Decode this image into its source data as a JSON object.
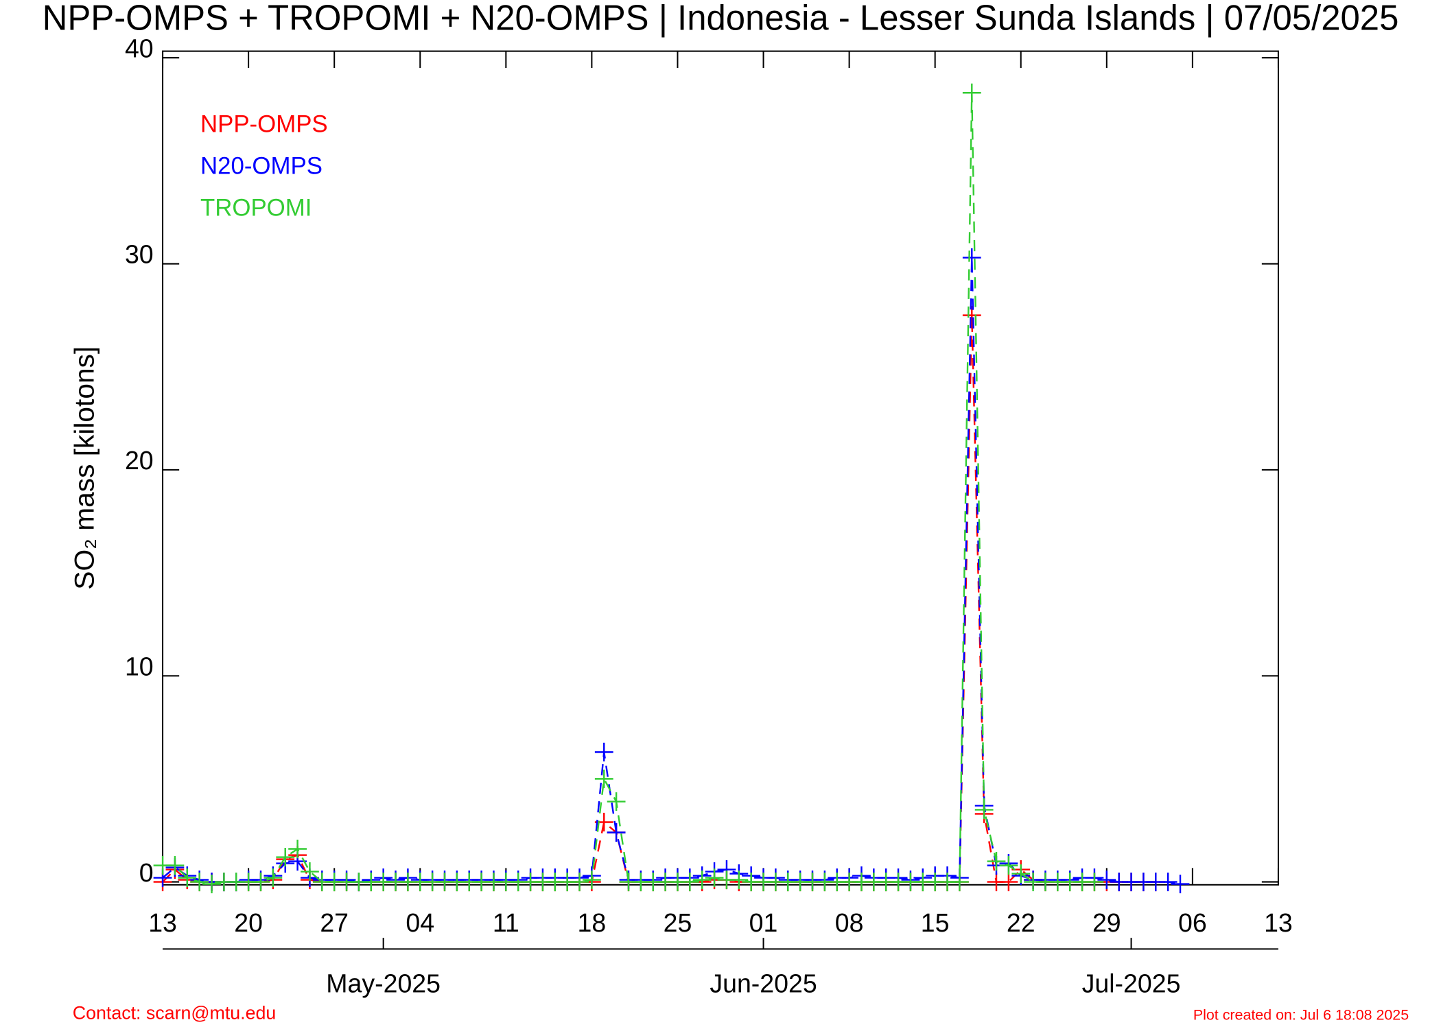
{
  "chart_data": {
    "type": "line",
    "title": "NPP-OMPS + TROPOMI + N20-OMPS | Indonesia - Lesser Sunda Islands | 07/05/2025",
    "y_label": "SO₂ mass [kilotons]",
    "contact": "Contact: scarn@mtu.edu",
    "created": "Plot created on: Jul  6 18:08 2025",
    "x": [
      "2025-04-13",
      "2025-04-14",
      "2025-04-15",
      "2025-04-16",
      "2025-04-17",
      "2025-04-18",
      "2025-04-19",
      "2025-04-20",
      "2025-04-21",
      "2025-04-22",
      "2025-04-23",
      "2025-04-24",
      "2025-04-25",
      "2025-04-26",
      "2025-04-27",
      "2025-04-28",
      "2025-04-29",
      "2025-04-30",
      "2025-05-01",
      "2025-05-02",
      "2025-05-03",
      "2025-05-04",
      "2025-05-05",
      "2025-05-06",
      "2025-05-07",
      "2025-05-08",
      "2025-05-09",
      "2025-05-10",
      "2025-05-11",
      "2025-05-12",
      "2025-05-13",
      "2025-05-14",
      "2025-05-15",
      "2025-05-16",
      "2025-05-17",
      "2025-05-18",
      "2025-05-19",
      "2025-05-20",
      "2025-05-21",
      "2025-05-22",
      "2025-05-23",
      "2025-05-24",
      "2025-05-25",
      "2025-05-26",
      "2025-05-27",
      "2025-05-28",
      "2025-05-29",
      "2025-05-30",
      "2025-05-31",
      "2025-06-01",
      "2025-06-02",
      "2025-06-03",
      "2025-06-04",
      "2025-06-05",
      "2025-06-06",
      "2025-06-07",
      "2025-06-08",
      "2025-06-09",
      "2025-06-10",
      "2025-06-11",
      "2025-06-12",
      "2025-06-13",
      "2025-06-14",
      "2025-06-15",
      "2025-06-16",
      "2025-06-17",
      "2025-06-18",
      "2025-06-19",
      "2025-06-20",
      "2025-06-21",
      "2025-06-22",
      "2025-06-23",
      "2025-06-24",
      "2025-06-25",
      "2025-06-26",
      "2025-06-27",
      "2025-06-28",
      "2025-06-29",
      "2025-06-30",
      "2025-07-01",
      "2025-07-02",
      "2025-07-03",
      "2025-07-04",
      "2025-07-05"
    ],
    "series": [
      {
        "name": "NPP-OMPS",
        "color": "#ff0000",
        "values": [
          0.0,
          0.6,
          0.1,
          0.0,
          0.0,
          0.0,
          0.0,
          0.0,
          0.0,
          0.1,
          1.1,
          1.3,
          0.1,
          0.0,
          0.0,
          0.0,
          0.0,
          0.0,
          0.0,
          0.0,
          0.0,
          0.0,
          0.0,
          0.0,
          0.0,
          0.0,
          0.0,
          0.0,
          0.0,
          0.0,
          0.0,
          0.0,
          0.0,
          0.0,
          0.0,
          0.0,
          2.9,
          2.4,
          0.0,
          0.0,
          0.0,
          0.0,
          0.0,
          0.0,
          0.0,
          0.1,
          0.1,
          0.0,
          0.0,
          0.0,
          0.0,
          0.0,
          0.0,
          0.0,
          0.0,
          0.0,
          0.0,
          0.0,
          0.0,
          0.0,
          0.0,
          0.0,
          0.0,
          0.0,
          0.0,
          0.0,
          27.5,
          3.3,
          0.0,
          0.0,
          0.6,
          0.1,
          0.0,
          0.0,
          0.0,
          0.0,
          0.0,
          0.0,
          0.0,
          0.0,
          0.0,
          0.0,
          null,
          null
        ]
      },
      {
        "name": "N20-OMPS",
        "color": "#0000ff",
        "values": [
          0.2,
          0.7,
          0.3,
          0.1,
          0.0,
          0.0,
          0.0,
          0.1,
          0.1,
          0.3,
          0.9,
          1.0,
          0.2,
          0.1,
          0.1,
          0.1,
          0.0,
          0.1,
          0.2,
          0.1,
          0.2,
          0.1,
          0.1,
          0.1,
          0.1,
          0.1,
          0.1,
          0.1,
          0.1,
          0.1,
          0.2,
          0.2,
          0.2,
          0.2,
          0.2,
          0.3,
          6.3,
          2.4,
          0.1,
          0.1,
          0.1,
          0.2,
          0.2,
          0.2,
          0.3,
          0.5,
          0.6,
          0.4,
          0.3,
          0.2,
          0.2,
          0.1,
          0.1,
          0.1,
          0.1,
          0.2,
          0.2,
          0.3,
          0.2,
          0.2,
          0.2,
          0.1,
          0.2,
          0.3,
          0.3,
          0.2,
          30.3,
          3.7,
          0.8,
          0.9,
          0.3,
          0.1,
          0.1,
          0.1,
          0.1,
          0.2,
          0.2,
          0.1,
          0.0,
          0.0,
          0.0,
          0.0,
          0.0,
          -0.1
        ]
      },
      {
        "name": "TROPOMI",
        "color": "#33cc33",
        "values": [
          0.8,
          0.8,
          0.2,
          0.0,
          -0.1,
          0.0,
          0.0,
          0.0,
          0.0,
          0.2,
          1.2,
          1.6,
          0.5,
          0.0,
          0.0,
          0.0,
          0.0,
          0.0,
          0.0,
          0.0,
          0.0,
          0.0,
          0.0,
          0.0,
          0.0,
          0.0,
          0.0,
          0.0,
          0.0,
          0.0,
          0.0,
          0.0,
          0.0,
          0.0,
          0.0,
          0.1,
          5.0,
          3.9,
          0.0,
          0.0,
          0.0,
          0.0,
          0.0,
          0.0,
          0.1,
          0.2,
          0.1,
          0.1,
          0.0,
          0.0,
          0.0,
          0.0,
          0.0,
          0.0,
          0.0,
          0.0,
          0.0,
          0.0,
          0.0,
          0.0,
          0.0,
          0.0,
          0.0,
          0.0,
          0.0,
          0.0,
          38.3,
          3.5,
          1.0,
          0.8,
          0.4,
          0.0,
          0.0,
          0.0,
          0.0,
          0.0,
          0.0,
          null,
          null,
          null,
          null,
          null,
          null,
          null
        ]
      }
    ],
    "xlim": [
      "2025-04-13",
      "2025-07-13"
    ],
    "xticks": [
      {
        "value": "2025-04-13",
        "label": "13"
      },
      {
        "value": "2025-04-20",
        "label": "20"
      },
      {
        "value": "2025-04-27",
        "label": "27"
      },
      {
        "value": "2025-05-04",
        "label": "04"
      },
      {
        "value": "2025-05-11",
        "label": "11"
      },
      {
        "value": "2025-05-18",
        "label": "18"
      },
      {
        "value": "2025-05-25",
        "label": "25"
      },
      {
        "value": "2025-06-01",
        "label": "01"
      },
      {
        "value": "2025-06-08",
        "label": "08"
      },
      {
        "value": "2025-06-15",
        "label": "15"
      },
      {
        "value": "2025-06-22",
        "label": "22"
      },
      {
        "value": "2025-06-29",
        "label": "29"
      },
      {
        "value": "2025-07-06",
        "label": "06"
      },
      {
        "value": "2025-07-13",
        "label": "13"
      }
    ],
    "month_ticks": [
      {
        "value": "2025-05-01",
        "label": "May-2025"
      },
      {
        "value": "2025-06-01",
        "label": "Jun-2025"
      },
      {
        "value": "2025-07-01",
        "label": "Jul-2025"
      }
    ],
    "ylim": [
      -0.14,
      40.32
    ],
    "yticks": [
      0,
      10,
      20,
      30,
      40
    ],
    "line_style": "dashed",
    "marker": "plus"
  }
}
